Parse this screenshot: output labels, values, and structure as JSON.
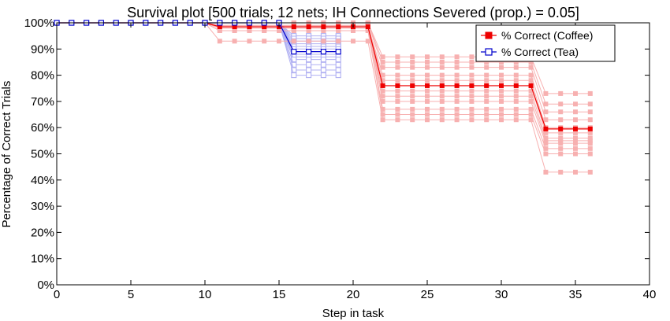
{
  "chart_data": {
    "type": "line",
    "title": "Survival plot [500 trials; 12 nets; IH Connections Severed (prop.) = 0.05]",
    "xlabel": "Step in task",
    "ylabel": "Percentage of Correct Trials",
    "xlim": [
      0,
      40
    ],
    "ylim": [
      0,
      100
    ],
    "xticks": [
      0,
      5,
      10,
      15,
      20,
      25,
      30,
      35,
      40
    ],
    "yticks": [
      0,
      10,
      20,
      30,
      40,
      50,
      60,
      70,
      80,
      90,
      100
    ],
    "ytick_suffix": "%",
    "grid": false,
    "legend": {
      "position": "top-right"
    },
    "series": [
      {
        "name": "% Correct (Coffee)",
        "color": "#ee0000",
        "marker": "filled-square",
        "x": [
          0,
          1,
          2,
          3,
          4,
          5,
          6,
          7,
          8,
          9,
          10,
          11,
          12,
          13,
          14,
          15,
          16,
          17,
          18,
          19,
          20,
          21,
          22,
          23,
          24,
          25,
          26,
          27,
          28,
          29,
          30,
          31,
          32,
          33,
          34,
          35,
          36
        ],
        "y": [
          100,
          100,
          100,
          100,
          100,
          100,
          100,
          100,
          100,
          100,
          100,
          98.5,
          98.5,
          98.5,
          98.5,
          98.5,
          98.5,
          98.5,
          98.5,
          98.5,
          98.5,
          98.5,
          76,
          76,
          76,
          76,
          76,
          76,
          76,
          76,
          76,
          76,
          76,
          59.5,
          59.5,
          59.5,
          59.5
        ]
      },
      {
        "name": "% Correct (Tea)",
        "color": "#0000cc",
        "marker": "open-square",
        "x": [
          0,
          1,
          2,
          3,
          4,
          5,
          6,
          7,
          8,
          9,
          10,
          11,
          12,
          13,
          14,
          15,
          16,
          17,
          18,
          19
        ],
        "y": [
          100,
          100,
          100,
          100,
          100,
          100,
          100,
          100,
          100,
          100,
          100,
          100,
          100,
          100,
          100,
          100,
          89,
          89,
          89,
          89
        ]
      }
    ],
    "individual_nets": {
      "coffee": {
        "color": "#f7b0b0",
        "x": [
          0,
          1,
          2,
          3,
          4,
          5,
          6,
          7,
          8,
          9,
          10,
          11,
          12,
          13,
          14,
          15,
          16,
          17,
          18,
          19,
          20,
          21,
          22,
          23,
          24,
          25,
          26,
          27,
          28,
          29,
          30,
          31,
          32,
          33,
          34,
          35,
          36
        ],
        "runs": [
          [
            100,
            100,
            100,
            100,
            100,
            100,
            100,
            100,
            100,
            100,
            100,
            100,
            100,
            100,
            100,
            100,
            100,
            100,
            100,
            100,
            100,
            100,
            87,
            87,
            87,
            87,
            87,
            87,
            87,
            87,
            87,
            87,
            87,
            73,
            73,
            73,
            73
          ],
          [
            100,
            100,
            100,
            100,
            100,
            100,
            100,
            100,
            100,
            100,
            100,
            100,
            100,
            100,
            100,
            100,
            100,
            100,
            100,
            100,
            100,
            100,
            85,
            85,
            85,
            85,
            85,
            85,
            85,
            85,
            85,
            85,
            85,
            69,
            69,
            69,
            69
          ],
          [
            100,
            100,
            100,
            100,
            100,
            100,
            100,
            100,
            100,
            100,
            100,
            100,
            100,
            100,
            100,
            100,
            100,
            100,
            100,
            100,
            100,
            100,
            83,
            83,
            83,
            83,
            83,
            83,
            83,
            83,
            83,
            83,
            83,
            66,
            66,
            66,
            66
          ],
          [
            100,
            100,
            100,
            100,
            100,
            100,
            100,
            100,
            100,
            100,
            100,
            99,
            99,
            99,
            99,
            99,
            99,
            99,
            99,
            99,
            99,
            99,
            80,
            80,
            80,
            80,
            80,
            80,
            80,
            80,
            80,
            80,
            80,
            63,
            63,
            63,
            63
          ],
          [
            100,
            100,
            100,
            100,
            100,
            100,
            100,
            100,
            100,
            100,
            100,
            99,
            99,
            99,
            99,
            99,
            99,
            99,
            99,
            99,
            99,
            99,
            78,
            78,
            78,
            78,
            78,
            78,
            78,
            78,
            78,
            78,
            78,
            60,
            60,
            60,
            60
          ],
          [
            100,
            100,
            100,
            100,
            100,
            100,
            100,
            100,
            100,
            100,
            100,
            99,
            99,
            99,
            99,
            99,
            99,
            99,
            99,
            99,
            99,
            99,
            76,
            76,
            76,
            76,
            76,
            76,
            76,
            76,
            76,
            76,
            76,
            58,
            58,
            58,
            58
          ],
          [
            100,
            100,
            100,
            100,
            100,
            100,
            100,
            100,
            100,
            100,
            100,
            98,
            98,
            98,
            98,
            98,
            98,
            98,
            98,
            98,
            98,
            98,
            74,
            74,
            74,
            74,
            74,
            74,
            74,
            74,
            74,
            74,
            74,
            56,
            56,
            56,
            56
          ],
          [
            100,
            100,
            100,
            100,
            100,
            100,
            100,
            100,
            100,
            100,
            100,
            98,
            98,
            98,
            98,
            98,
            98,
            98,
            98,
            98,
            98,
            98,
            72,
            72,
            72,
            72,
            72,
            72,
            72,
            72,
            72,
            72,
            72,
            55,
            55,
            55,
            55
          ],
          [
            100,
            100,
            100,
            100,
            100,
            100,
            100,
            100,
            100,
            100,
            100,
            98,
            98,
            98,
            98,
            98,
            98,
            98,
            98,
            98,
            98,
            98,
            70,
            70,
            70,
            70,
            70,
            70,
            70,
            70,
            70,
            70,
            70,
            54,
            54,
            54,
            54
          ],
          [
            100,
            100,
            100,
            100,
            100,
            100,
            100,
            100,
            100,
            100,
            100,
            97,
            97,
            97,
            97,
            97,
            97,
            97,
            97,
            97,
            97,
            97,
            67,
            67,
            67,
            67,
            67,
            67,
            67,
            67,
            67,
            67,
            67,
            52,
            52,
            52,
            52
          ],
          [
            100,
            100,
            100,
            100,
            100,
            100,
            100,
            100,
            100,
            100,
            100,
            97,
            97,
            97,
            97,
            97,
            97,
            97,
            97,
            97,
            97,
            97,
            65,
            65,
            65,
            65,
            65,
            65,
            65,
            65,
            65,
            65,
            65,
            50,
            50,
            50,
            50
          ],
          [
            100,
            100,
            100,
            100,
            100,
            100,
            100,
            100,
            100,
            100,
            100,
            93,
            93,
            93,
            93,
            93,
            93,
            93,
            93,
            93,
            93,
            93,
            63,
            63,
            63,
            63,
            63,
            63,
            63,
            63,
            63,
            63,
            63,
            43,
            43,
            43,
            43
          ]
        ]
      },
      "tea": {
        "color": "#b0b0f2",
        "x": [
          0,
          1,
          2,
          3,
          4,
          5,
          6,
          7,
          8,
          9,
          10,
          11,
          12,
          13,
          14,
          15,
          16,
          17,
          18,
          19
        ],
        "runs": [
          [
            100,
            100,
            100,
            100,
            100,
            100,
            100,
            100,
            100,
            100,
            100,
            100,
            100,
            100,
            100,
            100,
            95,
            95,
            95,
            95
          ],
          [
            100,
            100,
            100,
            100,
            100,
            100,
            100,
            100,
            100,
            100,
            100,
            100,
            100,
            100,
            100,
            100,
            94,
            94,
            94,
            94
          ],
          [
            100,
            100,
            100,
            100,
            100,
            100,
            100,
            100,
            100,
            100,
            100,
            100,
            100,
            100,
            100,
            100,
            93,
            93,
            93,
            93
          ],
          [
            100,
            100,
            100,
            100,
            100,
            100,
            100,
            100,
            100,
            100,
            100,
            100,
            100,
            100,
            100,
            100,
            92,
            92,
            92,
            92
          ],
          [
            100,
            100,
            100,
            100,
            100,
            100,
            100,
            100,
            100,
            100,
            100,
            100,
            100,
            100,
            100,
            100,
            91,
            91,
            91,
            91
          ],
          [
            100,
            100,
            100,
            100,
            100,
            100,
            100,
            100,
            100,
            100,
            100,
            100,
            100,
            100,
            100,
            100,
            90,
            90,
            90,
            90
          ],
          [
            100,
            100,
            100,
            100,
            100,
            100,
            100,
            100,
            100,
            100,
            100,
            100,
            100,
            100,
            100,
            100,
            88,
            88,
            88,
            88
          ],
          [
            100,
            100,
            100,
            100,
            100,
            100,
            100,
            100,
            100,
            100,
            100,
            100,
            100,
            100,
            100,
            100,
            87,
            87,
            87,
            87
          ],
          [
            100,
            100,
            100,
            100,
            100,
            100,
            100,
            100,
            100,
            100,
            100,
            100,
            100,
            100,
            100,
            100,
            86,
            86,
            86,
            86
          ],
          [
            100,
            100,
            100,
            100,
            100,
            100,
            100,
            100,
            100,
            100,
            100,
            100,
            100,
            100,
            100,
            100,
            84,
            84,
            84,
            84
          ],
          [
            100,
            100,
            100,
            100,
            100,
            100,
            100,
            100,
            100,
            100,
            100,
            100,
            100,
            100,
            100,
            100,
            82,
            82,
            82,
            82
          ],
          [
            100,
            100,
            100,
            100,
            100,
            100,
            100,
            100,
            100,
            100,
            100,
            100,
            100,
            100,
            100,
            100,
            80,
            80,
            80,
            80
          ]
        ]
      }
    }
  }
}
